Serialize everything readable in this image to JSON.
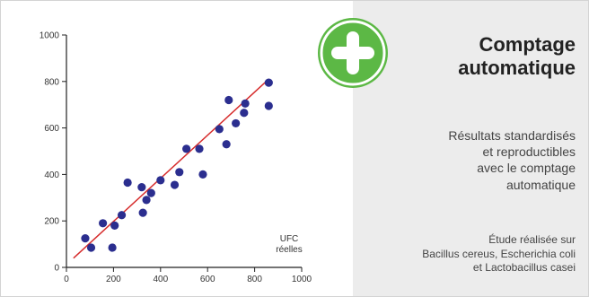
{
  "panel": {
    "title_lines": [
      "Comptage",
      "automatique"
    ],
    "description_lines": [
      "Résultats standardisés",
      "et reproductibles",
      "avec le comptage",
      "automatique"
    ],
    "note_lines": [
      "Étude réalisée sur",
      "Bacillus cereus, Escherichia coli",
      "et Lactobacillus casei"
    ],
    "badge_icon": "plus-icon",
    "badge_color": "#5cb845"
  },
  "chart_data": {
    "type": "scatter",
    "title": "",
    "xlabel": "UFC\nréelles",
    "ylabel": "",
    "xlim": [
      0,
      1000
    ],
    "ylim": [
      0,
      1000
    ],
    "xticks": [
      0,
      200,
      400,
      600,
      800,
      1000
    ],
    "yticks": [
      0,
      200,
      400,
      600,
      800,
      1000
    ],
    "point_color": "#2b2e8f",
    "line_color": "#d62b2b",
    "trend_line": [
      [
        30,
        40
      ],
      [
        860,
        810
      ]
    ],
    "points": [
      [
        80,
        125
      ],
      [
        105,
        85
      ],
      [
        155,
        190
      ],
      [
        195,
        85
      ],
      [
        205,
        180
      ],
      [
        235,
        225
      ],
      [
        260,
        365
      ],
      [
        320,
        345
      ],
      [
        325,
        235
      ],
      [
        340,
        290
      ],
      [
        360,
        320
      ],
      [
        400,
        375
      ],
      [
        460,
        355
      ],
      [
        480,
        410
      ],
      [
        510,
        510
      ],
      [
        565,
        510
      ],
      [
        580,
        400
      ],
      [
        650,
        595
      ],
      [
        680,
        530
      ],
      [
        690,
        720
      ],
      [
        720,
        620
      ],
      [
        755,
        665
      ],
      [
        760,
        705
      ],
      [
        860,
        795
      ],
      [
        860,
        695
      ]
    ]
  }
}
